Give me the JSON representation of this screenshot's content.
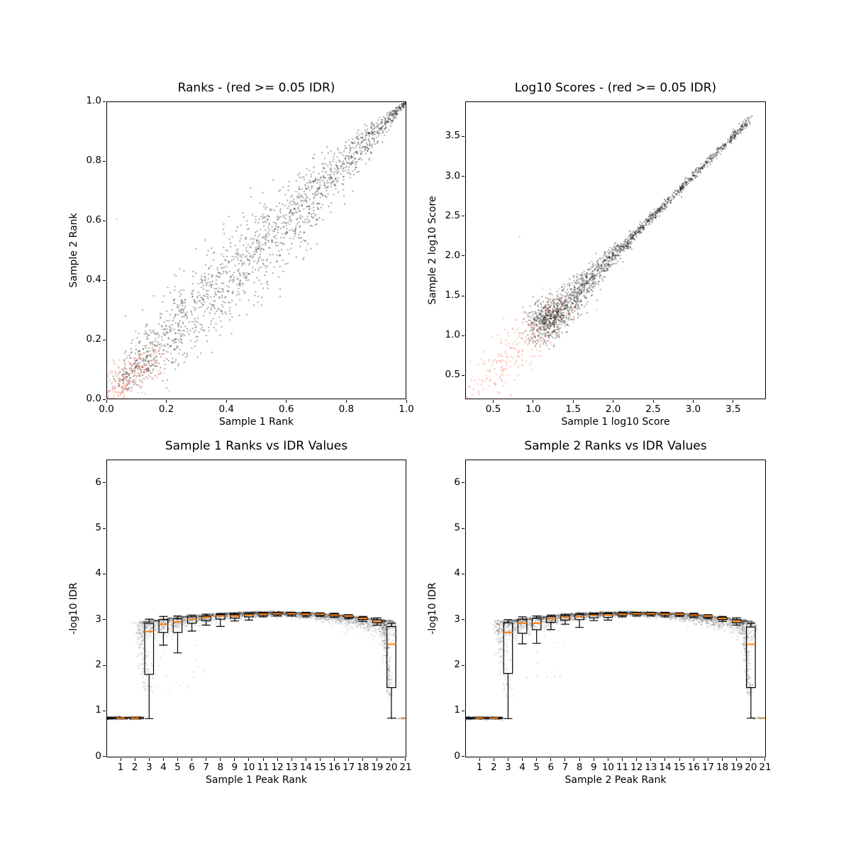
{
  "figure": {
    "background": "#ffffff",
    "text_color": "#000000",
    "frame_color": "#000000",
    "reproducible_point_color": "rgba(0,0,0,0.30)",
    "irreproducible_point_color": "rgba(255,99,71,0.33)",
    "idr_threshold_note": "red >= 0.05 IDR"
  },
  "chart_data": [
    {
      "id": "rank-scatter",
      "type": "scatter",
      "title": "Ranks - (red >= 0.05 IDR)",
      "xlabel": "Sample 1 Rank",
      "ylabel": "Sample 2 Rank",
      "xlim": [
        0.0,
        1.0
      ],
      "ylim": [
        0.0,
        1.0
      ],
      "xticks": [
        0.0,
        0.2,
        0.4,
        0.6,
        0.8,
        1.0
      ],
      "yticks": [
        0.0,
        0.2,
        0.4,
        0.6,
        0.8,
        1.0
      ],
      "tick_decimals": 1,
      "grid": false,
      "series": [
        {
          "name": "reproducible-peaks",
          "color": "rgba(0,0,0,0.30)",
          "marker_px": 1.2,
          "n": 1800,
          "model": {
            "kind": "diagonal",
            "t_min": 0.05,
            "t_max": 0.999,
            "sd_base": 0.003,
            "sd_amp": 0.1,
            "sd_skew": 0.55
          },
          "outliers": []
        },
        {
          "name": "irreproducible-peaks",
          "color": "rgba(255,99,71,0.33)",
          "marker_px": 1.2,
          "n": 290,
          "model": {
            "kind": "corner",
            "t_max": 0.15,
            "t_pow": 1.5,
            "sd": 0.032
          },
          "outliers": [
            [
              0.035,
              0.605
            ],
            [
              0.21,
              0.028
            ]
          ]
        }
      ]
    },
    {
      "id": "score-scatter",
      "type": "scatter",
      "title": "Log10 Scores - (red >= 0.05 IDR)",
      "xlabel": "Sample 1 log10 Score",
      "ylabel": "Sample 2 log10 Score",
      "xlim": [
        0.15,
        3.91
      ],
      "ylim": [
        0.2,
        3.94
      ],
      "xticks": [
        0.5,
        1.0,
        1.5,
        2.0,
        2.5,
        3.0,
        3.5
      ],
      "yticks": [
        0.5,
        1.0,
        1.5,
        2.0,
        2.5,
        3.0,
        3.5
      ],
      "tick_decimals": 1,
      "grid": false,
      "series": [
        {
          "name": "reproducible-peaks",
          "color": "rgba(0,0,0,0.30)",
          "marker_px": 1.2,
          "n": 1800,
          "model": {
            "kind": "powline",
            "v_min": 1.12,
            "v_span": 2.6,
            "pow": 2.0,
            "sd_base": 0.022,
            "sd_amp": 0.1,
            "sd_knee": 2.3,
            "sd_div": 1.2
          },
          "outliers": []
        },
        {
          "name": "irreproducible-peaks",
          "color": "rgba(255,99,71,0.33)",
          "marker_px": 1.2,
          "n": 280,
          "model": {
            "kind": "powline",
            "v_min": 0.38,
            "v_span": 1.05,
            "pow": 1.2,
            "sd_base": 0.15,
            "sd_amp": 0,
            "sd_knee": 0,
            "sd_div": 1
          },
          "outliers": [
            [
              0.83,
              2.24
            ],
            [
              3.62,
              3.6
            ],
            [
              3.74,
              3.76
            ]
          ]
        }
      ]
    },
    {
      "id": "sample1-rank-vs-idr",
      "type": "box-scatter",
      "title": "Sample 1 Ranks vs IDR Values",
      "xlabel": "Sample 1 Peak Rank",
      "ylabel": "-log10 IDR",
      "xlim": [
        0,
        21.05
      ],
      "ylim": [
        -0.02,
        6.51
      ],
      "xticks": [
        1,
        2,
        3,
        4,
        5,
        6,
        7,
        8,
        9,
        10,
        11,
        12,
        13,
        14,
        15,
        16,
        17,
        18,
        19,
        20,
        21
      ],
      "yticks": [
        0,
        1,
        2,
        3,
        4,
        5,
        6
      ],
      "tick_decimals": 0,
      "grid": false,
      "box_color": "#000000",
      "median_color": "#ff7f0e",
      "box_width": 0.62,
      "boxes": [
        {
          "rank": 1,
          "lo": 0.84,
          "q1": 0.826,
          "med": 0.84,
          "q3": 0.854,
          "hi": 0.84,
          "style": "collapsed"
        },
        {
          "rank": 2,
          "lo": 0.84,
          "q1": 0.826,
          "med": 0.84,
          "q3": 0.854,
          "hi": 0.84,
          "style": "collapsed"
        },
        {
          "rank": 3,
          "lo": 0.83,
          "q1": 1.8,
          "med": 2.74,
          "q3": 2.92,
          "hi": 3.01
        },
        {
          "rank": 4,
          "lo": 2.44,
          "q1": 2.72,
          "med": 2.9,
          "q3": 3.0,
          "hi": 3.07
        },
        {
          "rank": 5,
          "lo": 2.27,
          "q1": 2.72,
          "med": 2.95,
          "q3": 3.02,
          "hi": 3.08
        },
        {
          "rank": 6,
          "lo": 2.75,
          "q1": 2.92,
          "med": 3.01,
          "q3": 3.06,
          "hi": 3.1
        },
        {
          "rank": 7,
          "lo": 2.88,
          "q1": 2.98,
          "med": 3.05,
          "q3": 3.08,
          "hi": 3.12
        },
        {
          "rank": 8,
          "lo": 2.85,
          "q1": 3.01,
          "med": 3.08,
          "q3": 3.11,
          "hi": 3.13
        },
        {
          "rank": 9,
          "lo": 2.97,
          "q1": 3.03,
          "med": 3.08,
          "q3": 3.11,
          "hi": 3.14
        },
        {
          "rank": 10,
          "lo": 2.99,
          "q1": 3.06,
          "med": 3.1,
          "q3": 3.12,
          "hi": 3.15
        },
        {
          "rank": 11,
          "lo": 3.06,
          "q1": 3.09,
          "med": 3.12,
          "q3": 3.14,
          "hi": 3.16
        },
        {
          "rank": 12,
          "lo": 3.08,
          "q1": 3.11,
          "med": 3.13,
          "q3": 3.15,
          "hi": 3.16
        },
        {
          "rank": 13,
          "lo": 3.08,
          "q1": 3.11,
          "med": 3.13,
          "q3": 3.15,
          "hi": 3.16
        },
        {
          "rank": 14,
          "lo": 3.06,
          "q1": 3.1,
          "med": 3.12,
          "q3": 3.14,
          "hi": 3.16
        },
        {
          "rank": 15,
          "lo": 3.07,
          "q1": 3.1,
          "med": 3.12,
          "q3": 3.13,
          "hi": 3.15
        },
        {
          "rank": 16,
          "lo": 3.05,
          "q1": 3.08,
          "med": 3.1,
          "q3": 3.12,
          "hi": 3.14
        },
        {
          "rank": 17,
          "lo": 3.02,
          "q1": 3.05,
          "med": 3.08,
          "q3": 3.09,
          "hi": 3.11
        },
        {
          "rank": 18,
          "lo": 2.96,
          "q1": 3.0,
          "med": 3.03,
          "q3": 3.05,
          "hi": 3.07
        },
        {
          "rank": 19,
          "lo": 2.88,
          "q1": 2.93,
          "med": 2.96,
          "q3": 3.0,
          "hi": 3.04
        },
        {
          "rank": 20,
          "lo": 0.84,
          "q1": 1.51,
          "med": 2.46,
          "q3": 2.85,
          "hi": 2.92
        },
        {
          "rank": 21,
          "lo": 0.84,
          "q1": 0.83,
          "med": 0.84,
          "q3": 0.85,
          "hi": 0.84,
          "style": "dash"
        }
      ],
      "scatter": {
        "marker_px": 1.1,
        "arc_shape": {
          "peak": 3.16,
          "curv": 0.0028,
          "center": 11.5,
          "spread_base": 0.04,
          "spread_curv": 0.0022,
          "up_jitter": 0.012
        },
        "components": [
          {
            "kind": "arc",
            "n": 2800,
            "r0": 2.2,
            "r1": 20.4,
            "alpha": 0.1
          },
          {
            "kind": "edge",
            "n": 1200,
            "r0": 2.5,
            "r1": 20.2,
            "sd": 0.015,
            "alpha": 0.12
          },
          {
            "kind": "tail",
            "n": 140,
            "r0": 2.25,
            "drift": 0.7,
            "y_top": 2.98,
            "y_drop": 1.68,
            "pow": 1.4,
            "r_sd": 0.22,
            "alpha": 0.13
          },
          {
            "kind": "tail",
            "n": 260,
            "r0": 19.35,
            "drift": 0.55,
            "y_top": 2.98,
            "y_drop": 1.66,
            "pow": 1.6,
            "r_sd": 0.13,
            "alpha": 0.13
          },
          {
            "kind": "stray",
            "n": 22,
            "r0": 3.0,
            "r1": 7.0,
            "y0": 1.35,
            "y1": 2.8,
            "alpha": 0.12
          },
          {
            "kind": "flat",
            "n": 520,
            "r0": 0.0,
            "r1": 2.62,
            "y": 0.843,
            "sd": 0.013,
            "pow": 1.15,
            "alpha": 0.22
          },
          {
            "kind": "flat",
            "n": 26,
            "r0": 19.95,
            "r1": 21.0,
            "y": 0.843,
            "sd": 0.012,
            "pow": 1.0,
            "alpha": 0.15
          }
        ]
      }
    },
    {
      "id": "sample2-rank-vs-idr",
      "type": "box-scatter",
      "title": "Sample 2 Ranks vs IDR Values",
      "xlabel": "Sample 2 Peak Rank",
      "ylabel": "-log10 IDR",
      "xlim": [
        0,
        21.05
      ],
      "ylim": [
        -0.02,
        6.51
      ],
      "xticks": [
        1,
        2,
        3,
        4,
        5,
        6,
        7,
        8,
        9,
        10,
        11,
        12,
        13,
        14,
        15,
        16,
        17,
        18,
        19,
        20,
        21
      ],
      "yticks": [
        0,
        1,
        2,
        3,
        4,
        5,
        6
      ],
      "tick_decimals": 0,
      "grid": false,
      "box_color": "#000000",
      "median_color": "#ff7f0e",
      "box_width": 0.62,
      "boxes": [
        {
          "rank": 1,
          "lo": 0.84,
          "q1": 0.826,
          "med": 0.84,
          "q3": 0.854,
          "hi": 0.84,
          "style": "collapsed"
        },
        {
          "rank": 2,
          "lo": 0.84,
          "q1": 0.826,
          "med": 0.84,
          "q3": 0.854,
          "hi": 0.84,
          "style": "collapsed"
        },
        {
          "rank": 3,
          "lo": 0.83,
          "q1": 1.82,
          "med": 2.72,
          "q3": 2.93,
          "hi": 3.0
        },
        {
          "rank": 4,
          "lo": 2.47,
          "q1": 2.7,
          "med": 2.92,
          "q3": 3.01,
          "hi": 3.06
        },
        {
          "rank": 5,
          "lo": 2.48,
          "q1": 2.78,
          "med": 2.92,
          "q3": 3.03,
          "hi": 3.08
        },
        {
          "rank": 6,
          "lo": 2.78,
          "q1": 2.94,
          "med": 3.02,
          "q3": 3.07,
          "hi": 3.1
        },
        {
          "rank": 7,
          "lo": 2.9,
          "q1": 2.99,
          "med": 3.05,
          "q3": 3.09,
          "hi": 3.12
        },
        {
          "rank": 8,
          "lo": 2.83,
          "q1": 3.0,
          "med": 3.07,
          "q3": 3.11,
          "hi": 3.14
        },
        {
          "rank": 9,
          "lo": 2.98,
          "q1": 3.04,
          "med": 3.09,
          "q3": 3.12,
          "hi": 3.14
        },
        {
          "rank": 10,
          "lo": 2.99,
          "q1": 3.05,
          "med": 3.1,
          "q3": 3.13,
          "hi": 3.15
        },
        {
          "rank": 11,
          "lo": 3.06,
          "q1": 3.09,
          "med": 3.12,
          "q3": 3.14,
          "hi": 3.16
        },
        {
          "rank": 12,
          "lo": 3.08,
          "q1": 3.11,
          "med": 3.13,
          "q3": 3.15,
          "hi": 3.16
        },
        {
          "rank": 13,
          "lo": 3.08,
          "q1": 3.11,
          "med": 3.13,
          "q3": 3.15,
          "hi": 3.16
        },
        {
          "rank": 14,
          "lo": 3.06,
          "q1": 3.1,
          "med": 3.12,
          "q3": 3.14,
          "hi": 3.16
        },
        {
          "rank": 15,
          "lo": 3.07,
          "q1": 3.1,
          "med": 3.12,
          "q3": 3.13,
          "hi": 3.15
        },
        {
          "rank": 16,
          "lo": 3.05,
          "q1": 3.08,
          "med": 3.1,
          "q3": 3.12,
          "hi": 3.14
        },
        {
          "rank": 17,
          "lo": 3.02,
          "q1": 3.05,
          "med": 3.08,
          "q3": 3.09,
          "hi": 3.11
        },
        {
          "rank": 18,
          "lo": 2.96,
          "q1": 3.0,
          "med": 3.03,
          "q3": 3.05,
          "hi": 3.07
        },
        {
          "rank": 19,
          "lo": 2.88,
          "q1": 2.93,
          "med": 2.96,
          "q3": 3.0,
          "hi": 3.04
        },
        {
          "rank": 20,
          "lo": 0.84,
          "q1": 1.51,
          "med": 2.46,
          "q3": 2.84,
          "hi": 2.92
        },
        {
          "rank": 21,
          "lo": 0.84,
          "q1": 0.83,
          "med": 0.84,
          "q3": 0.85,
          "hi": 0.84,
          "style": "dash"
        }
      ],
      "scatter": {
        "marker_px": 1.1,
        "arc_shape": {
          "peak": 3.16,
          "curv": 0.0028,
          "center": 11.5,
          "spread_base": 0.04,
          "spread_curv": 0.0022,
          "up_jitter": 0.012
        },
        "components": [
          {
            "kind": "arc",
            "n": 2800,
            "r0": 2.2,
            "r1": 20.4,
            "alpha": 0.1
          },
          {
            "kind": "edge",
            "n": 1200,
            "r0": 2.5,
            "r1": 20.2,
            "sd": 0.015,
            "alpha": 0.12
          },
          {
            "kind": "tail",
            "n": 130,
            "r0": 2.25,
            "drift": 0.7,
            "y_top": 2.98,
            "y_drop": 1.68,
            "pow": 1.4,
            "r_sd": 0.22,
            "alpha": 0.13
          },
          {
            "kind": "tail",
            "n": 260,
            "r0": 19.35,
            "drift": 0.55,
            "y_top": 2.98,
            "y_drop": 1.66,
            "pow": 1.6,
            "r_sd": 0.13,
            "alpha": 0.13
          },
          {
            "kind": "stray",
            "n": 20,
            "r0": 3.0,
            "r1": 7.0,
            "y0": 1.35,
            "y1": 2.8,
            "alpha": 0.12
          },
          {
            "kind": "flat",
            "n": 520,
            "r0": 0.0,
            "r1": 2.62,
            "y": 0.843,
            "sd": 0.013,
            "pow": 1.15,
            "alpha": 0.22
          },
          {
            "kind": "flat",
            "n": 26,
            "r0": 19.95,
            "r1": 21.0,
            "y": 0.843,
            "sd": 0.012,
            "pow": 1.0,
            "alpha": 0.15
          }
        ]
      }
    }
  ]
}
